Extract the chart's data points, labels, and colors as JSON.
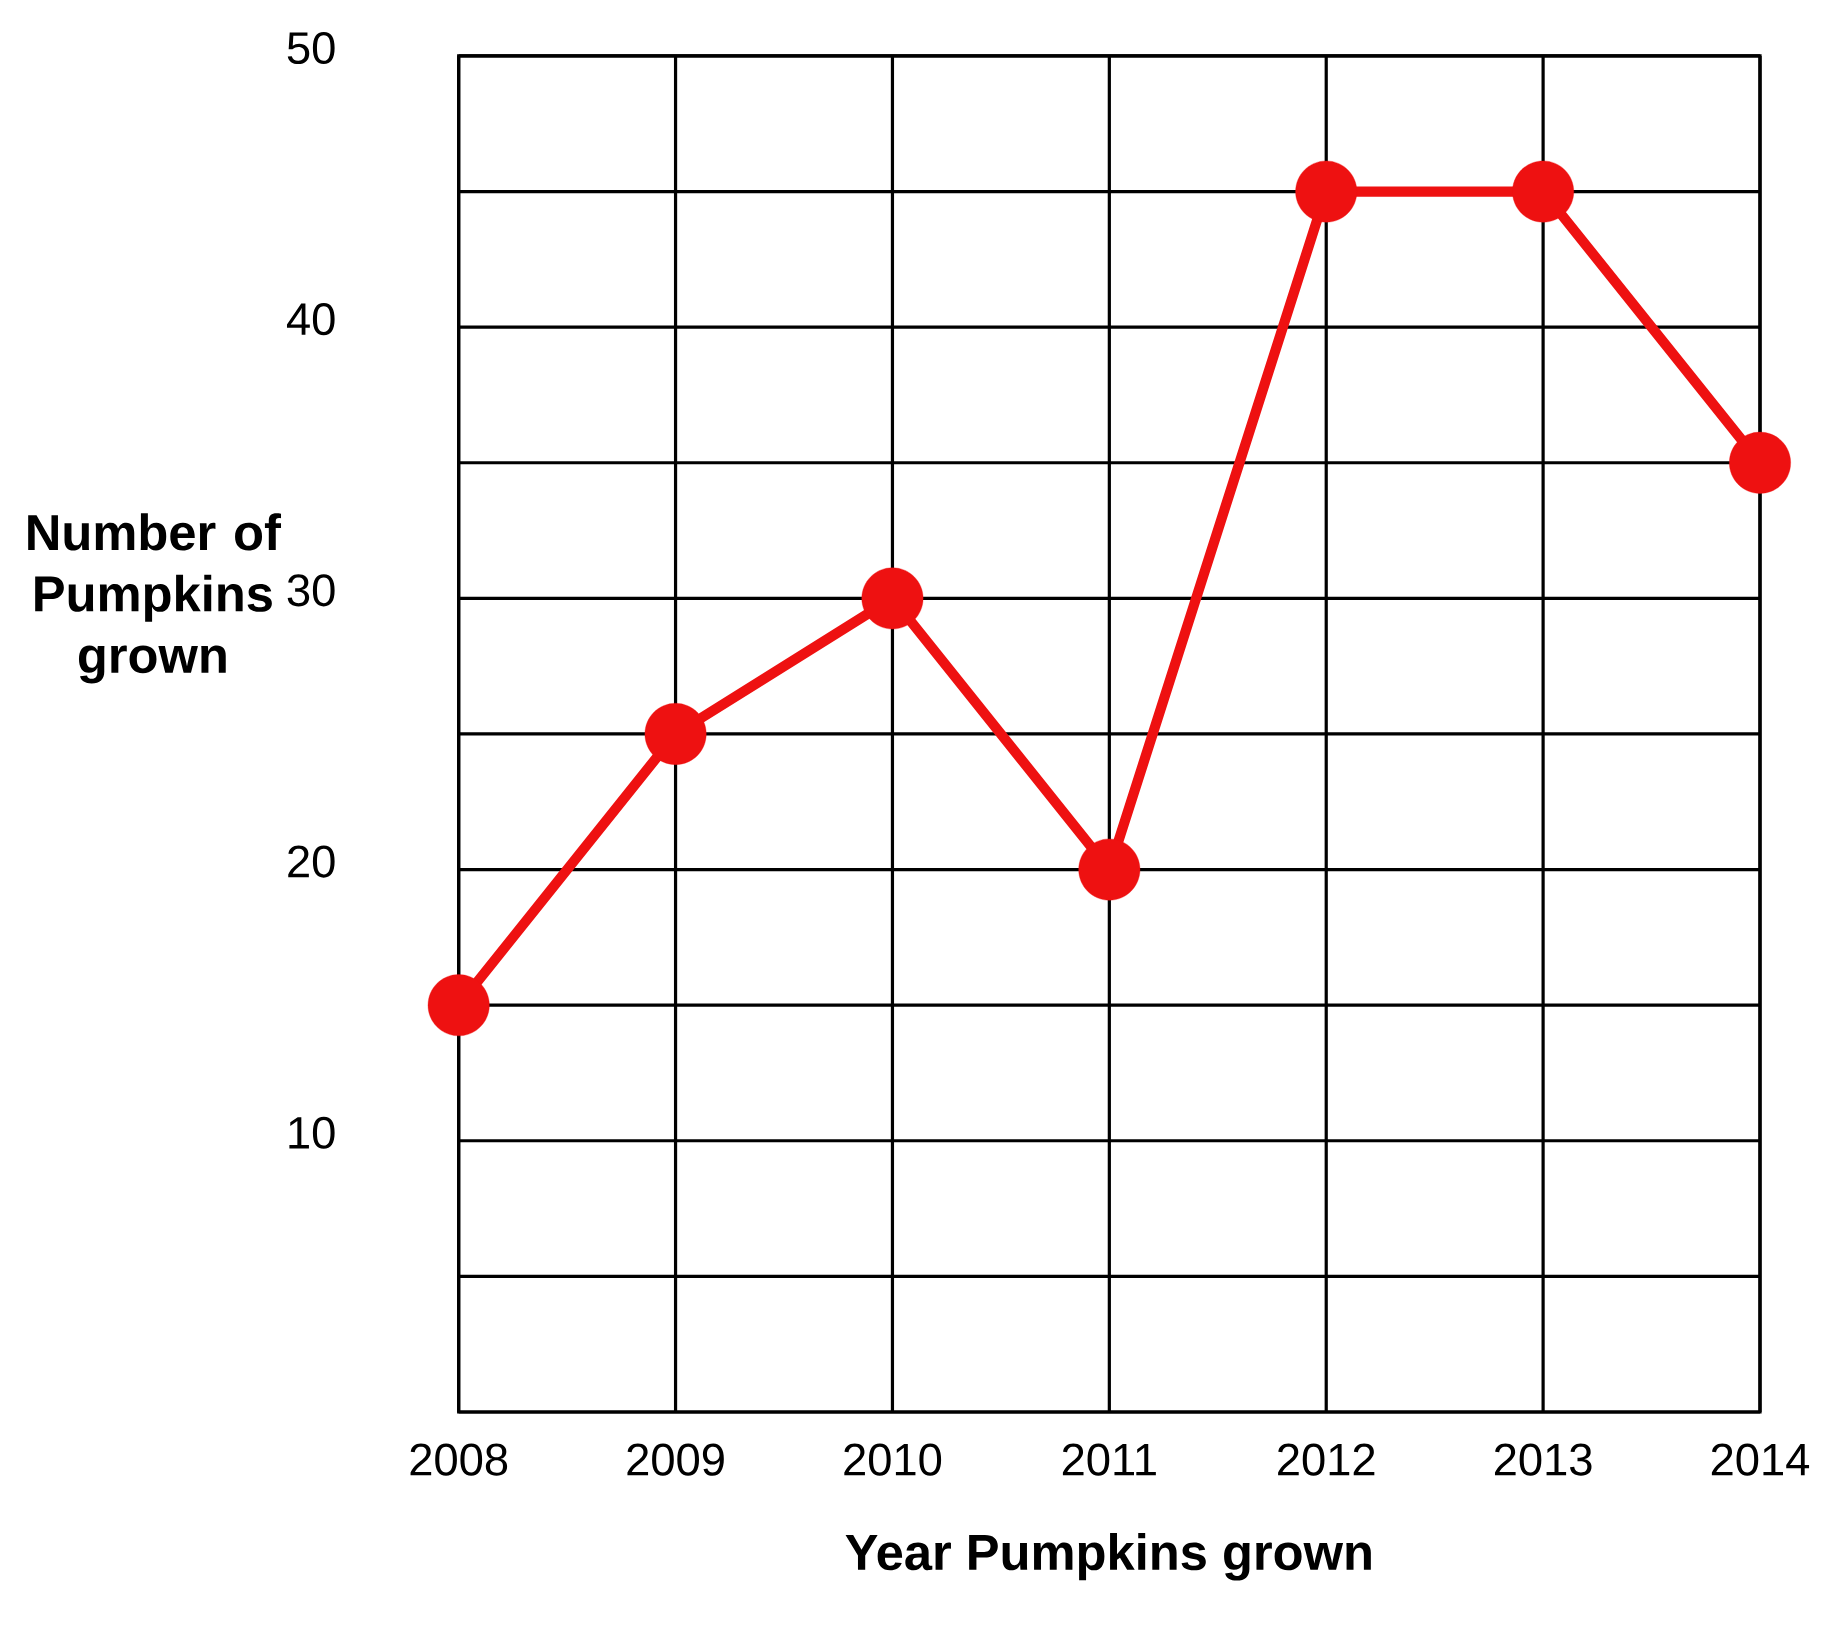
{
  "chart_data": {
    "type": "line",
    "xlabel": "Year Pumpkins grown",
    "ylabel": "Number of Pumpkins grown",
    "categories": [
      "2008",
      "2009",
      "2010",
      "2011",
      "2012",
      "2013",
      "2014"
    ],
    "values": [
      15,
      25,
      30,
      20,
      45,
      45,
      35
    ],
    "color": "#ee1111",
    "marker": "circle",
    "ylim": [
      0,
      50
    ],
    "yticks": [
      {
        "value": 0,
        "label": null
      },
      {
        "value": 5,
        "label": null
      },
      10,
      {
        "value": 15,
        "label": null
      },
      20,
      {
        "value": 25,
        "label": null
      },
      30,
      {
        "value": 35,
        "label": null
      },
      40,
      {
        "value": 45,
        "label": null
      },
      50
    ],
    "grid": true
  }
}
